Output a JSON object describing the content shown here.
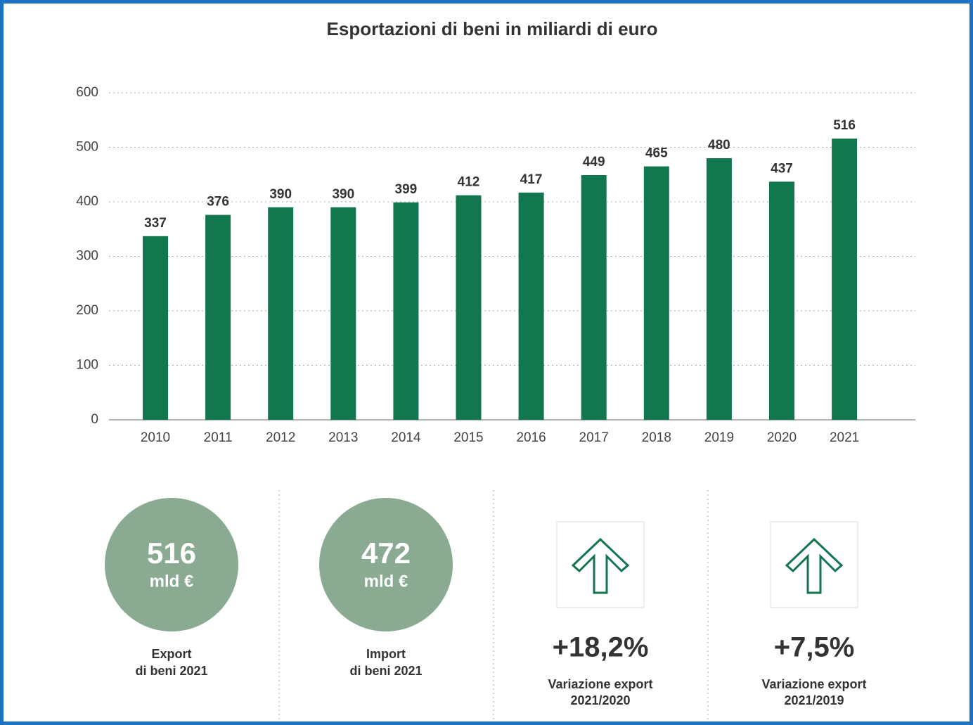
{
  "chart_data": {
    "type": "bar",
    "title": "Esportazioni di beni in miliardi di euro",
    "categories": [
      "2010",
      "2011",
      "2012",
      "2013",
      "2014",
      "2015",
      "2016",
      "2017",
      "2018",
      "2019",
      "2020",
      "2021"
    ],
    "values": [
      337,
      376,
      390,
      390,
      399,
      412,
      417,
      449,
      465,
      480,
      437,
      516
    ],
    "color": "#12774f",
    "ylim": [
      0,
      600
    ],
    "yticks": [
      0,
      100,
      200,
      300,
      400,
      500,
      600
    ],
    "grid": true
  },
  "stats": [
    {
      "value": "516",
      "unit": "mld €",
      "label": [
        "Export",
        "di beni 2021"
      ]
    },
    {
      "value": "472",
      "unit": "mld €",
      "label": [
        "Import",
        "di beni 2021"
      ]
    }
  ],
  "changes": [
    {
      "value": "+18,2%",
      "label": [
        "Variazione export",
        "2021/2020"
      ]
    },
    {
      "value": "+7,5%",
      "label": [
        "Variazione export",
        "2021/2019"
      ]
    }
  ]
}
